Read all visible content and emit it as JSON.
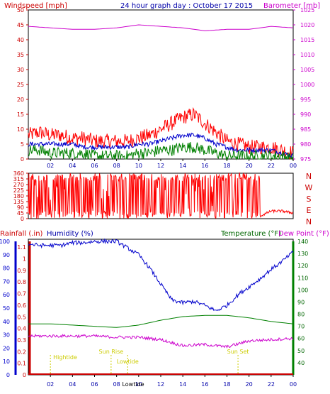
{
  "chart_data": [
    {
      "type": "line",
      "title": "24 hour graph day : October 17 2015",
      "left_axis_title": "Windspeed [mph]",
      "right_axis_title": "Barometer [mb]",
      "x_ticks": [
        "02",
        "04",
        "06",
        "08",
        "10",
        "12",
        "14",
        "16",
        "18",
        "20",
        "22",
        "00"
      ],
      "left_ticks": [
        "0",
        "5",
        "10",
        "15",
        "20",
        "25",
        "30",
        "35",
        "40",
        "45",
        "50"
      ],
      "right_ticks": [
        "975",
        "980",
        "985",
        "990",
        "995",
        "1000",
        "1005",
        "1010",
        "1015",
        "1020",
        "1025"
      ],
      "ylim_left": [
        0,
        50
      ],
      "ylim_right": [
        975,
        1025
      ],
      "grid": false,
      "series": [
        {
          "color": "#ff0000",
          "axis": "left",
          "style": "noisy",
          "x": [
            0,
            1,
            2,
            3,
            4,
            5,
            6,
            7,
            8,
            9,
            10,
            11,
            12,
            13,
            14,
            15,
            16,
            17,
            18,
            19,
            20,
            21,
            22,
            23,
            24
          ],
          "values": [
            8,
            9,
            8,
            8,
            7,
            7,
            6,
            6,
            6,
            6,
            7,
            8,
            10,
            12,
            14,
            15,
            12,
            9,
            6,
            5,
            4,
            4,
            4,
            3,
            2
          ],
          "spread": 2.5
        },
        {
          "color": "#0000cc",
          "axis": "left",
          "style": "noisy",
          "x": [
            0,
            1,
            2,
            3,
            4,
            5,
            6,
            7,
            8,
            9,
            10,
            11,
            12,
            13,
            14,
            15,
            16,
            17,
            18,
            19,
            20,
            21,
            22,
            23,
            24
          ],
          "values": [
            5,
            5,
            5,
            5,
            5,
            4,
            4,
            4,
            4,
            4,
            5,
            5,
            6,
            7,
            8,
            8,
            7,
            5,
            4,
            3,
            3,
            3,
            3,
            2,
            1
          ],
          "spread": 0.8
        },
        {
          "color": "#008000",
          "axis": "left",
          "style": "noisy",
          "x": [
            0,
            1,
            2,
            3,
            4,
            5,
            6,
            7,
            8,
            9,
            10,
            11,
            12,
            13,
            14,
            15,
            16,
            17,
            18,
            19,
            20,
            21,
            22,
            23,
            24
          ],
          "values": [
            3,
            3,
            2,
            2,
            2,
            2,
            1,
            1,
            1,
            1,
            2,
            2,
            3,
            3,
            4,
            4,
            3,
            2,
            1,
            1,
            1,
            1,
            1,
            1,
            0
          ],
          "spread": 2
        },
        {
          "color": "#cc00cc",
          "axis": "right",
          "style": "smooth",
          "x": [
            0,
            2,
            4,
            6,
            8,
            10,
            12,
            14,
            16,
            18,
            20,
            22,
            24
          ],
          "values": [
            1019.5,
            1019,
            1018.5,
            1018.5,
            1019,
            1020,
            1019.5,
            1019,
            1018,
            1018.5,
            1018.5,
            1019.5,
            1019
          ]
        }
      ]
    },
    {
      "type": "line",
      "right_axis_letters": [
        "N",
        "W",
        "S",
        "E",
        "N"
      ],
      "left_ticks": [
        "0",
        "45",
        "90",
        "135",
        "180",
        "225",
        "270",
        "315",
        "360"
      ],
      "ylim": [
        0,
        360
      ],
      "series": [
        {
          "color": "#ff0000",
          "name": "",
          "style": "direction",
          "x": [
            0,
            0.5,
            1,
            2,
            3,
            4,
            5,
            6,
            7,
            8,
            9,
            10,
            11,
            12,
            13,
            14,
            15,
            16,
            17,
            18,
            19,
            20,
            21,
            22,
            23,
            24
          ],
          "values": [
            40,
            360,
            30,
            300,
            30,
            350,
            20,
            360,
            360,
            30,
            360,
            330,
            20,
            30,
            80,
            50,
            100,
            60,
            80,
            30,
            40,
            70,
            20,
            60,
            60,
            45
          ]
        }
      ]
    },
    {
      "type": "line",
      "left_axis_title_1": "Rainfall (.in)",
      "left_axis_title_2": "Humidity (%)",
      "right_axis_title_1": "Temperature (°F)",
      "right_axis_title_2": "Dew Point (°F)",
      "humidity_ticks": [
        "0",
        "10",
        "20",
        "30",
        "40",
        "50",
        "60",
        "70",
        "80",
        "90",
        "100"
      ],
      "rain_ticks": [
        "0",
        "0.1",
        "0.2",
        "0.3",
        "0.4",
        "0.5",
        "0.6",
        "0.7",
        "0.8",
        "0.9",
        "1",
        "1.1"
      ],
      "temp_ticks": [
        "40",
        "50",
        "60",
        "70",
        "80",
        "90",
        "100",
        "110",
        "120",
        "130",
        "140"
      ],
      "ylim_humidity": [
        0,
        100
      ],
      "ylim_temp": [
        30,
        140
      ],
      "series": [
        {
          "color": "#0000cc",
          "axis": "humidity",
          "style": "noisy",
          "x": [
            0,
            1,
            2,
            3,
            4,
            5,
            6,
            7,
            8,
            9,
            10,
            11,
            12,
            13,
            14,
            15,
            16,
            17,
            18,
            19,
            20,
            21,
            22,
            23,
            24
          ],
          "values": [
            98,
            97,
            97,
            97,
            99,
            99,
            100,
            100,
            100,
            95,
            90,
            80,
            68,
            56,
            54,
            55,
            52,
            48,
            52,
            60,
            66,
            72,
            79,
            85,
            92
          ],
          "spread": 1.5
        },
        {
          "color": "#008000",
          "axis": "temp",
          "style": "smooth",
          "x": [
            0,
            2,
            4,
            6,
            8,
            10,
            12,
            14,
            16,
            18,
            20,
            22,
            24
          ],
          "values": [
            72,
            72,
            71,
            70,
            69,
            71,
            75,
            78,
            79,
            79,
            77,
            74,
            72
          ]
        },
        {
          "color": "#cc00cc",
          "axis": "temp",
          "style": "noisy",
          "x": [
            0,
            2,
            4,
            6,
            8,
            10,
            12,
            14,
            16,
            18,
            20,
            22,
            24
          ],
          "values": [
            62,
            62,
            62,
            62,
            61,
            61,
            59,
            54,
            55,
            53,
            58,
            59,
            60
          ],
          "spread": 1.2
        }
      ],
      "annotations": [
        {
          "label": "Hightide",
          "hour": 2
        },
        {
          "label": "Sun Rise",
          "hour": 7.5
        },
        {
          "label": "Lowtide",
          "hour": 9
        },
        {
          "label": "Sun Set",
          "hour": 19
        }
      ],
      "x_ticks": [
        "02",
        "04",
        "06",
        "08",
        "10",
        "12",
        "14",
        "16",
        "18",
        "20",
        "22",
        "00"
      ],
      "x_bottom_extra": "Lowtide"
    }
  ],
  "colors": {
    "red": "#ff0000",
    "blue": "#0000cc",
    "green": "#008000",
    "magenta": "#cc00cc",
    "tide": "#cccc00"
  }
}
